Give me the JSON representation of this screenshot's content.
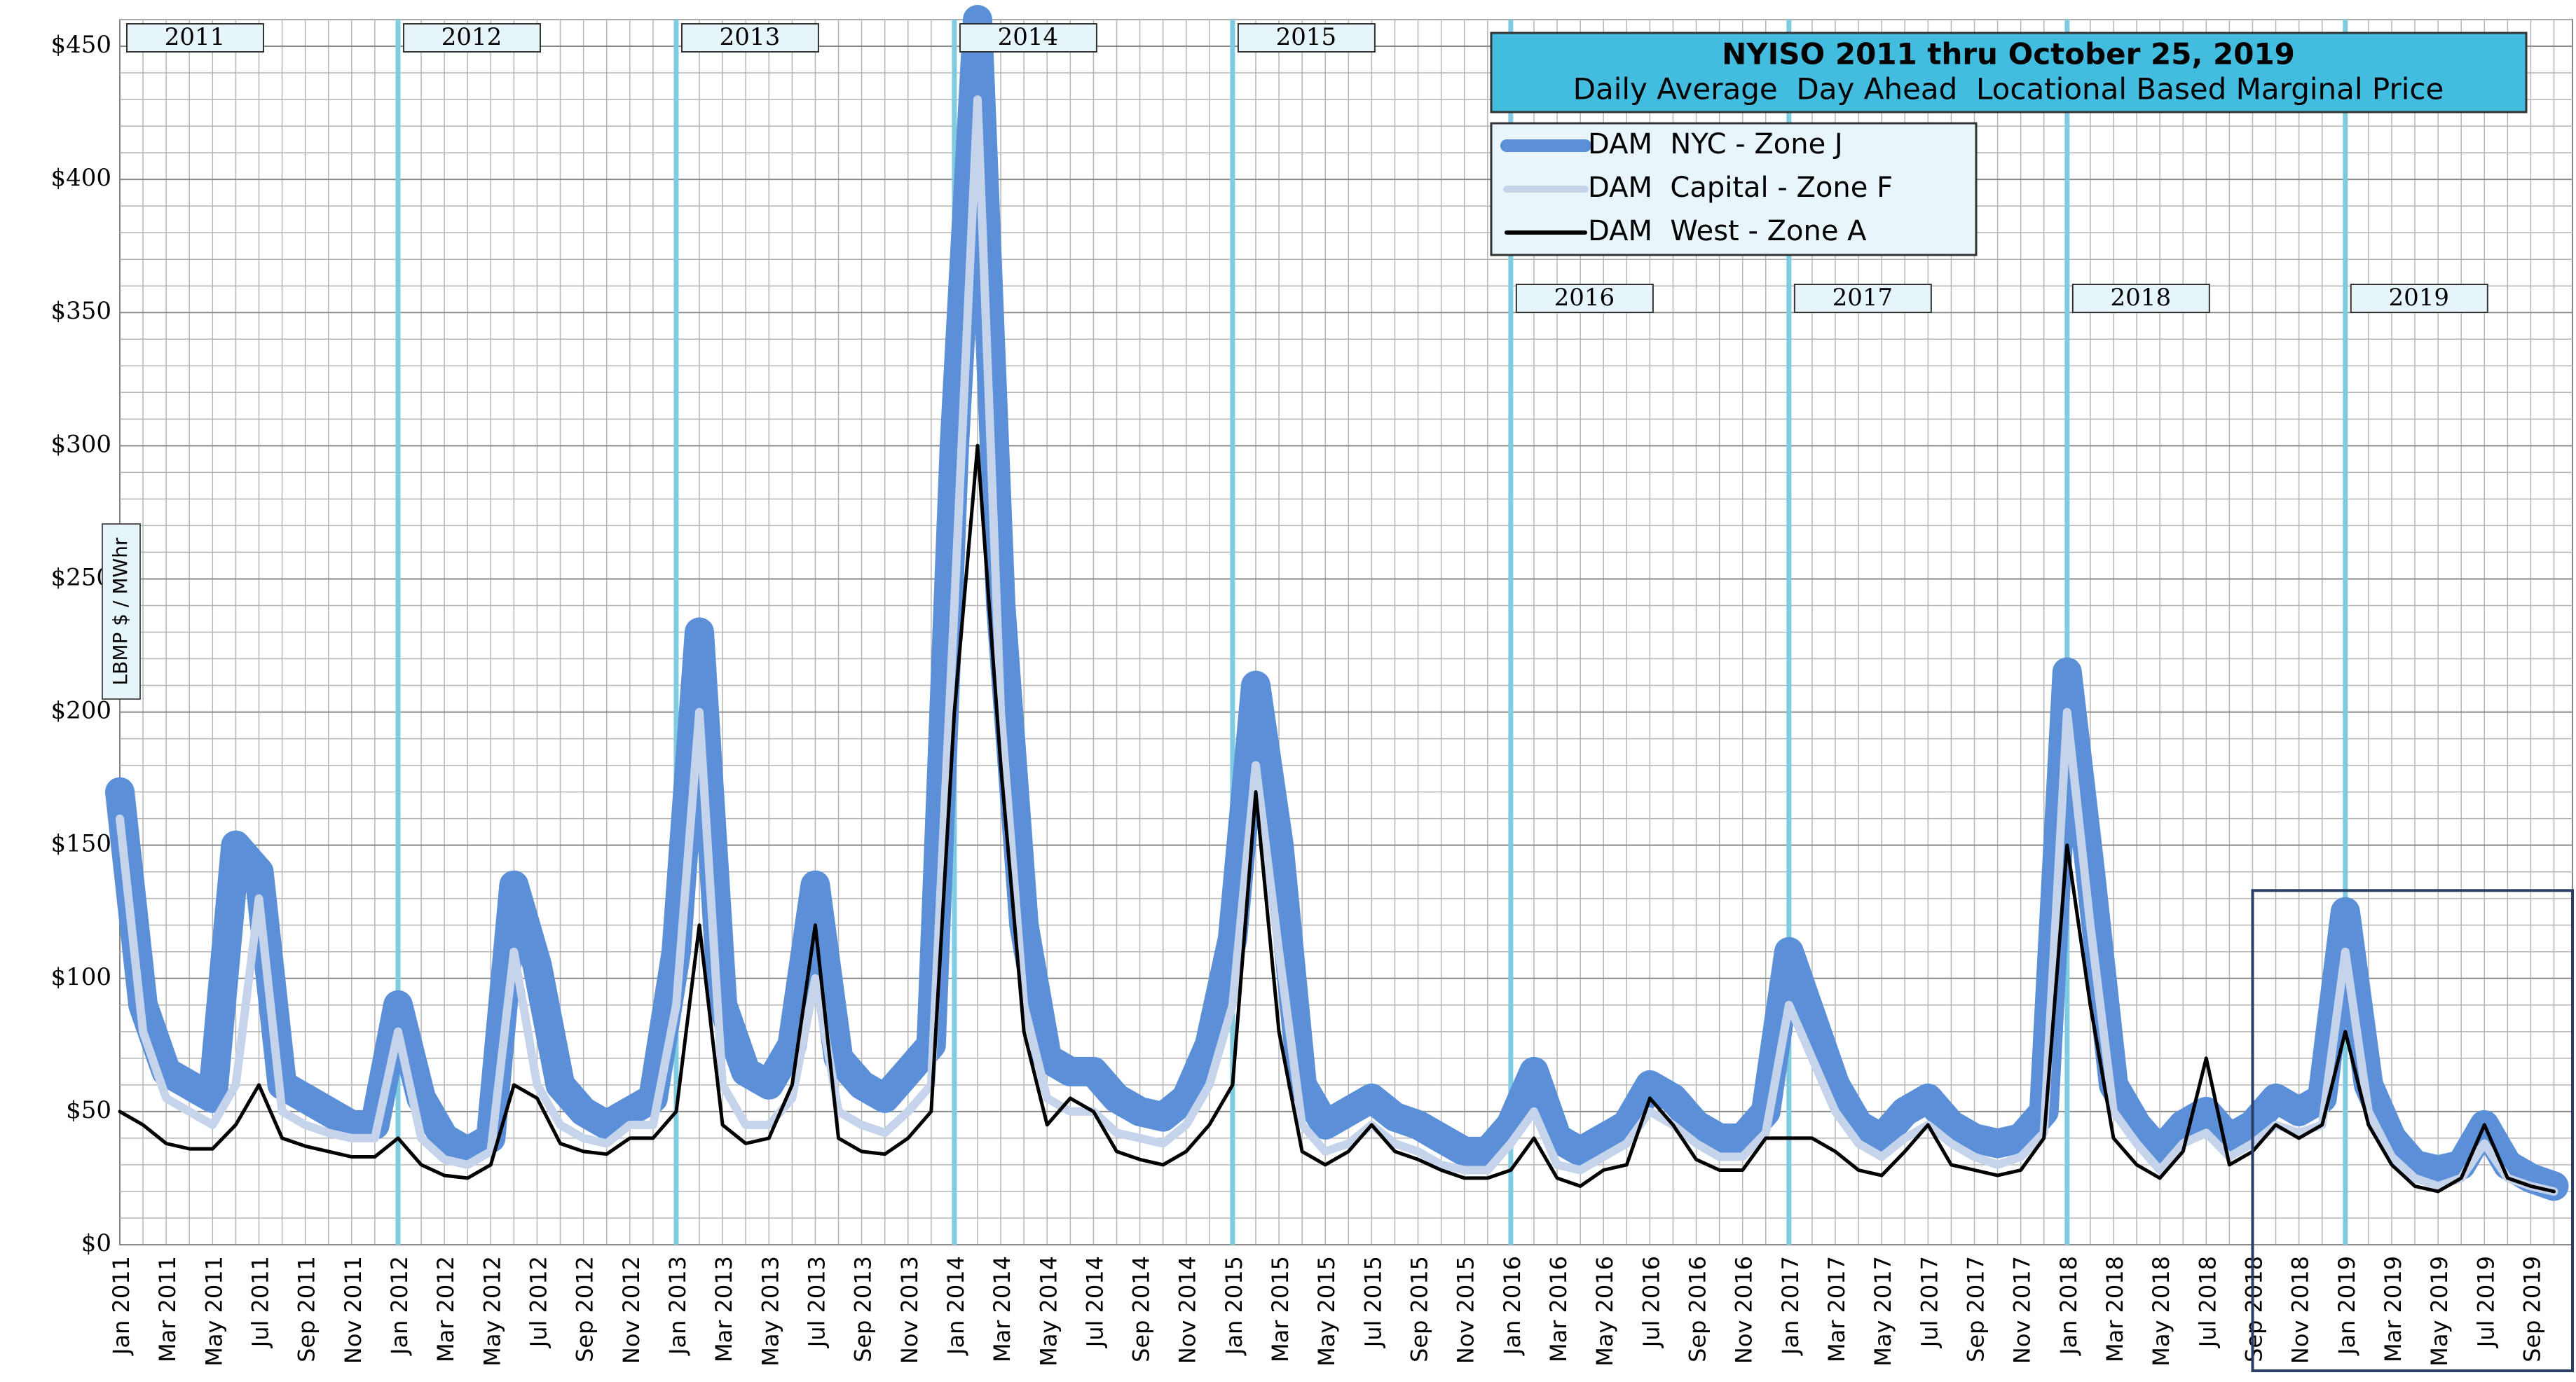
{
  "chart_data": {
    "type": "line",
    "title": "NYISO 2011 thru October 25, 2019",
    "subtitle": "Daily Average  Day Ahead  Locational Based Marginal Price",
    "y_label": "LBMP $ / MWhr",
    "year_labels": [
      "2011",
      "2012",
      "2013",
      "2014",
      "2015",
      "2016",
      "2017",
      "2018",
      "2019"
    ],
    "categories": [
      "Jan 2011",
      null,
      "Mar 2011",
      null,
      "May 2011",
      null,
      "Jul 2011",
      null,
      "Sep 2011",
      null,
      "Nov 2011",
      null,
      "Jan 2012",
      null,
      "Mar 2012",
      null,
      "May 2012",
      null,
      "Jul 2012",
      null,
      "Sep 2012",
      null,
      "Nov 2012",
      null,
      "Jan 2013",
      null,
      "Mar 2013",
      null,
      "May 2013",
      null,
      "Jul 2013",
      null,
      "Sep 2013",
      null,
      "Nov 2013",
      null,
      "Jan 2014",
      null,
      "Mar 2014",
      null,
      "May 2014",
      null,
      "Jul 2014",
      null,
      "Sep 2014",
      null,
      "Nov 2014",
      null,
      "Jan 2015",
      null,
      "Mar 2015",
      null,
      "May 2015",
      null,
      "Jul 2015",
      null,
      "Sep 2015",
      null,
      "Nov 2015",
      null,
      "Jan 2016",
      null,
      "Mar 2016",
      null,
      "May 2016",
      null,
      "Jul 2016",
      null,
      "Sep 2016",
      null,
      "Nov 2016",
      null,
      "Jan 2017",
      null,
      "Mar 2017",
      null,
      "May 2017",
      null,
      "Jul 2017",
      null,
      "Sep 2017",
      null,
      "Nov 2017",
      null,
      "Jan 2018",
      null,
      "Mar 2018",
      null,
      "May 2018",
      null,
      "Jul 2018",
      null,
      "Sep 2018",
      null,
      "Nov 2018",
      null,
      "Jan 2019",
      null,
      "Mar 2019",
      null,
      "May 2019",
      null,
      "Jul 2019",
      null,
      "Sep 2019",
      null
    ],
    "series": [
      {
        "name": "DAM  NYC - Zone J",
        "color": "#5b8fd8",
        "values": [
          170,
          90,
          65,
          60,
          55,
          150,
          140,
          60,
          55,
          50,
          45,
          45,
          90,
          55,
          40,
          35,
          40,
          135,
          105,
          60,
          50,
          45,
          50,
          55,
          110,
          230,
          90,
          65,
          60,
          75,
          135,
          70,
          60,
          55,
          65,
          75,
          300,
          460,
          240,
          120,
          70,
          65,
          65,
          55,
          50,
          48,
          55,
          75,
          115,
          210,
          150,
          60,
          45,
          50,
          55,
          48,
          45,
          40,
          35,
          35,
          45,
          65,
          40,
          35,
          40,
          45,
          60,
          55,
          45,
          40,
          40,
          50,
          110,
          85,
          60,
          45,
          40,
          50,
          55,
          45,
          40,
          38,
          40,
          50,
          215,
          140,
          60,
          45,
          35,
          45,
          50,
          40,
          45,
          55,
          50,
          55,
          125,
          60,
          40,
          30,
          28,
          30,
          45,
          30,
          25,
          22
        ]
      },
      {
        "name": "DAM  Capital - Zone F",
        "color": "#c6d4eb",
        "values": [
          160,
          80,
          55,
          50,
          45,
          60,
          130,
          50,
          45,
          42,
          40,
          40,
          80,
          40,
          32,
          30,
          35,
          110,
          60,
          45,
          40,
          38,
          45,
          45,
          90,
          200,
          60,
          45,
          45,
          55,
          100,
          50,
          45,
          42,
          50,
          60,
          240,
          430,
          200,
          90,
          55,
          50,
          50,
          42,
          40,
          38,
          45,
          60,
          90,
          180,
          110,
          45,
          35,
          38,
          45,
          38,
          35,
          30,
          28,
          28,
          38,
          50,
          30,
          28,
          33,
          38,
          50,
          45,
          38,
          33,
          33,
          42,
          90,
          70,
          50,
          38,
          33,
          40,
          45,
          38,
          33,
          30,
          33,
          42,
          200,
          120,
          50,
          38,
          28,
          38,
          42,
          33,
          38,
          45,
          42,
          45,
          110,
          50,
          33,
          25,
          22,
          25,
          38,
          25,
          22,
          20
        ]
      },
      {
        "name": "DAM  West - Zone A",
        "color": "#000000",
        "values": [
          50,
          45,
          38,
          36,
          36,
          45,
          60,
          40,
          37,
          35,
          33,
          33,
          40,
          30,
          26,
          25,
          30,
          60,
          55,
          38,
          35,
          34,
          40,
          40,
          50,
          120,
          45,
          38,
          40,
          60,
          120,
          40,
          35,
          34,
          40,
          50,
          200,
          300,
          180,
          80,
          45,
          55,
          50,
          35,
          32,
          30,
          35,
          45,
          60,
          170,
          80,
          35,
          30,
          35,
          45,
          35,
          32,
          28,
          25,
          25,
          28,
          40,
          25,
          22,
          28,
          30,
          55,
          45,
          32,
          28,
          28,
          40,
          40,
          40,
          35,
          28,
          26,
          35,
          45,
          30,
          28,
          26,
          28,
          40,
          150,
          90,
          40,
          30,
          25,
          35,
          70,
          30,
          35,
          45,
          40,
          45,
          80,
          45,
          30,
          22,
          20,
          25,
          45,
          25,
          22,
          20
        ]
      }
    ],
    "ylim": [
      0,
      460
    ],
    "yticks": [
      {
        "value": 0,
        "label": "$0"
      },
      {
        "value": 50,
        "label": "$50"
      },
      {
        "value": 100,
        "label": "$100"
      },
      {
        "value": 150,
        "label": "$150"
      },
      {
        "value": 200,
        "label": "$200"
      },
      {
        "value": 250,
        "label": "$250"
      },
      {
        "value": 300,
        "label": "$300"
      },
      {
        "value": 350,
        "label": "$350"
      },
      {
        "value": 400,
        "label": "$400"
      },
      {
        "value": 450,
        "label": "$450"
      }
    ],
    "grid": true
  }
}
